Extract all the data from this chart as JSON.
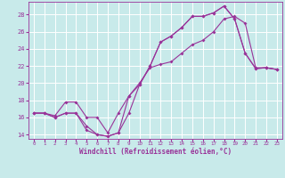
{
  "title": "",
  "xlabel": "Windchill (Refroidissement éolien,°C)",
  "ylabel": "",
  "bg_color": "#c8eaea",
  "grid_color": "#ffffff",
  "line_color": "#993399",
  "xlim": [
    -0.5,
    23.5
  ],
  "ylim": [
    13.5,
    29.5
  ],
  "yticks": [
    14,
    16,
    18,
    20,
    22,
    24,
    26,
    28
  ],
  "xticks": [
    0,
    1,
    2,
    3,
    4,
    5,
    6,
    7,
    8,
    9,
    10,
    11,
    12,
    13,
    14,
    15,
    16,
    17,
    18,
    19,
    20,
    21,
    22,
    23
  ],
  "series1_x": [
    0,
    1,
    2,
    3,
    4,
    5,
    6,
    7,
    8,
    9,
    10,
    11,
    12,
    13,
    14,
    15,
    16,
    17,
    18,
    19,
    20,
    21,
    22,
    23
  ],
  "series1_y": [
    16.5,
    16.5,
    16.0,
    16.5,
    16.5,
    15.0,
    14.0,
    13.8,
    14.2,
    18.5,
    19.8,
    22.0,
    24.8,
    25.5,
    26.5,
    27.8,
    27.8,
    28.2,
    29.0,
    27.5,
    23.5,
    21.7,
    21.8,
    21.6
  ],
  "series2_x": [
    0,
    1,
    2,
    3,
    4,
    5,
    6,
    7,
    8,
    9,
    10,
    11,
    12,
    13,
    14,
    15,
    16,
    17,
    18,
    19,
    20,
    21,
    22,
    23
  ],
  "series2_y": [
    16.5,
    16.5,
    16.0,
    16.5,
    16.5,
    14.5,
    14.0,
    13.8,
    14.2,
    16.5,
    19.8,
    22.0,
    24.8,
    25.5,
    26.5,
    27.8,
    27.8,
    28.2,
    29.0,
    27.5,
    23.5,
    21.7,
    21.8,
    21.6
  ],
  "series3_x": [
    0,
    1,
    2,
    3,
    4,
    5,
    6,
    7,
    8,
    9,
    10,
    11,
    12,
    13,
    14,
    15,
    16,
    17,
    18,
    19,
    20,
    21,
    22,
    23
  ],
  "series3_y": [
    16.5,
    16.5,
    16.2,
    17.8,
    17.8,
    16.0,
    16.0,
    14.2,
    16.5,
    18.5,
    20.0,
    21.8,
    22.2,
    22.5,
    23.5,
    24.5,
    25.0,
    26.0,
    27.5,
    27.8,
    27.0,
    21.8,
    21.8,
    21.6
  ],
  "marker_size": 2.0,
  "line_width": 0.8,
  "tick_fontsize": 5.0,
  "xlabel_fontsize": 5.5
}
